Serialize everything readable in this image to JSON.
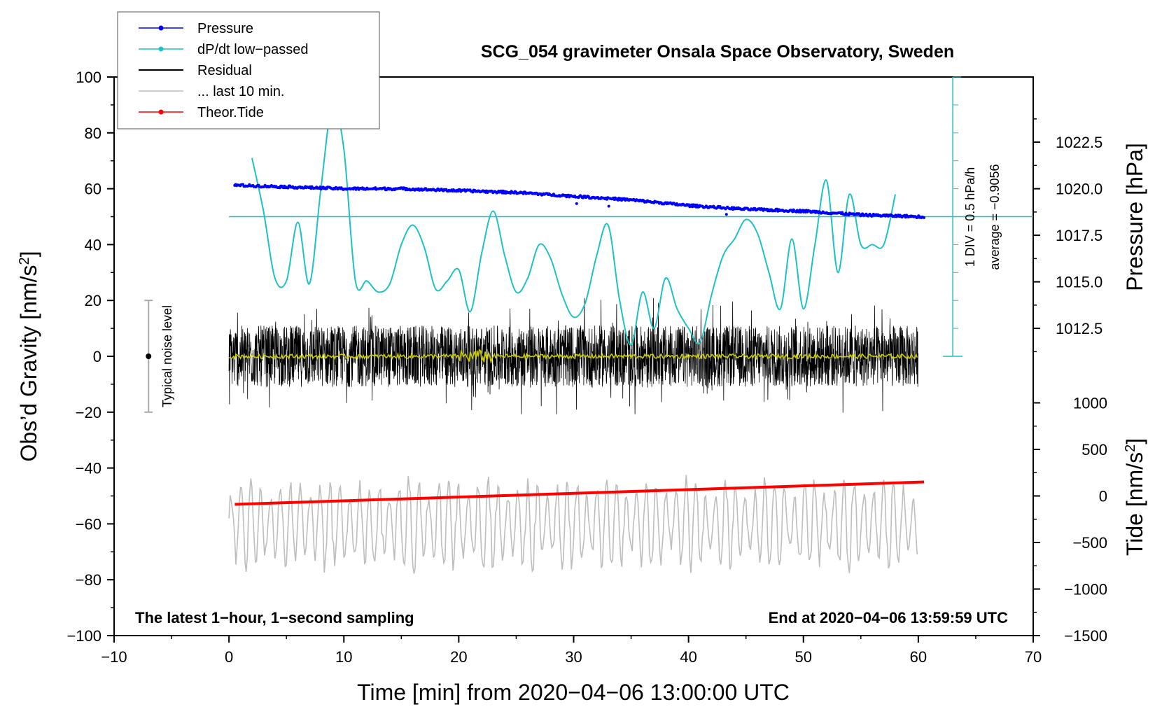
{
  "chart_data": {
    "type": "line",
    "title": "SCG_054 gravimeter Onsala Space Observatory, Sweden",
    "xlabel": "Time [min] from 2020−04−06 13:00:00 UTC",
    "ylabel_left_main": "Obs’d Gravity [nm/s",
    "ylabel_left_sup": "2",
    "ylabel_left_close": "]",
    "ylabel_right_pressure": "Pressure [hPa]",
    "ylabel_right_tide_main": "Tide [nm/s",
    "ylabel_right_tide_sup": "2",
    "ylabel_right_tide_close": "]",
    "xlim": [
      -10,
      70
    ],
    "ylim": [
      -100,
      100
    ],
    "x_ticks": [
      "−10",
      "0",
      "10",
      "20",
      "30",
      "40",
      "50",
      "60",
      "70"
    ],
    "x_tick_values": [
      -10,
      0,
      10,
      20,
      30,
      40,
      50,
      60,
      70
    ],
    "y_ticks": [
      "100",
      "80",
      "60",
      "40",
      "20",
      "0",
      "−20",
      "−40",
      "−60",
      "−80",
      "−100"
    ],
    "y_tick_values": [
      100,
      80,
      60,
      40,
      20,
      0,
      -20,
      -40,
      -60,
      -80,
      -100
    ],
    "pressure_axis": {
      "ticks": [
        "1022.5",
        "1020.0",
        "1017.5",
        "1015.0",
        "1012.5"
      ],
      "tick_values": [
        1022.5,
        1020.0,
        1017.5,
        1015.0,
        1012.5
      ],
      "range_hpa": [
        1010,
        1025
      ]
    },
    "tide_axis": {
      "ticks": [
        "1000",
        "500",
        "0",
        "−500",
        "−1000",
        "−1500"
      ],
      "tick_values": [
        1000,
        500,
        0,
        -500,
        -1000,
        -1500
      ],
      "range": [
        -1500,
        1500
      ]
    },
    "legend": {
      "position": "top-left",
      "entries": [
        {
          "label": "Pressure",
          "color": "#0000ff",
          "marker": true
        },
        {
          "label": "dP/dt low−passed",
          "color": "#1fc2c2",
          "marker": true
        },
        {
          "label": "Residual",
          "color": "#000000",
          "marker": false
        },
        {
          "label": "... last 10 min.",
          "color": "#bdbdbd",
          "marker": false
        },
        {
          "label": "Theor.Tide",
          "color": "#ff0000",
          "marker": true
        }
      ]
    },
    "dpdt_scale": {
      "div_label": "1 DIV = 0.5 hPa/h",
      "average_label": "average = −0.9056"
    },
    "noise_label": "Typical noise level",
    "noise_bar": {
      "x": -7,
      "y_center": 0,
      "y_min": -20,
      "y_max": 20
    },
    "note_left": "The latest 1−hour, 1−second sampling",
    "note_right": "End at 2020−04−06 13:59:59 UTC",
    "series": [
      {
        "name": "Pressure",
        "unit": "hPa",
        "color": "#0000ff",
        "x": [
          0,
          5,
          10,
          15,
          20,
          25,
          30,
          35,
          40,
          45,
          50,
          55,
          60
        ],
        "values": [
          1020.2,
          1020.1,
          1020.0,
          1020.0,
          1019.9,
          1019.8,
          1019.6,
          1019.4,
          1019.1,
          1018.9,
          1018.8,
          1018.6,
          1018.5
        ]
      },
      {
        "name": "dP/dt low-passed",
        "unit": "DIV (0.5 hPa/h), baseline at y=50",
        "color": "#1fc2c2",
        "x": [
          2,
          3,
          4,
          5,
          6,
          7,
          8,
          9,
          10,
          11,
          12,
          13,
          14,
          15,
          16,
          17,
          18,
          19,
          20,
          21,
          22,
          23,
          24,
          25,
          26,
          27,
          28,
          29,
          30,
          31,
          32,
          33,
          34,
          35,
          36,
          37,
          38,
          39,
          40,
          41,
          42,
          43,
          44,
          45,
          46,
          47,
          48,
          49,
          50,
          51,
          52,
          53,
          54,
          55,
          56,
          57,
          58
        ],
        "values": [
          71,
          52,
          28,
          27,
          48,
          26,
          60,
          90,
          74,
          27,
          27,
          23,
          26,
          40,
          47,
          39,
          24,
          27,
          31,
          16,
          37,
          52,
          36,
          23,
          28,
          40,
          35,
          22,
          14,
          19,
          36,
          47,
          20,
          4,
          23,
          10,
          28,
          17,
          10,
          5,
          22,
          36,
          42,
          49,
          44,
          30,
          17,
          42,
          17,
          40,
          63,
          30,
          58,
          40,
          40,
          40,
          58
        ]
      },
      {
        "name": "Residual",
        "unit": "nm/s²",
        "color": "#000000",
        "x": [
          0,
          60
        ],
        "amplitude": 20,
        "values": [
          0,
          0
        ]
      },
      {
        "name": "Residual smoothed",
        "unit": "nm/s²",
        "color": "#cccc00",
        "x": [
          0,
          60
        ],
        "values": [
          0,
          0
        ]
      },
      {
        "name": "Last 10 min.",
        "unit": "nm/s²",
        "color": "#bdbdbd",
        "x": [
          0,
          60
        ],
        "values": [
          -60,
          -60
        ],
        "amplitude_range": [
          -85,
          -37
        ]
      },
      {
        "name": "Theor.Tide",
        "unit": "nm/s² (tide axis)",
        "color": "#ff0000",
        "x": [
          0,
          60
        ],
        "values": [
          -90,
          150
        ]
      }
    ]
  }
}
